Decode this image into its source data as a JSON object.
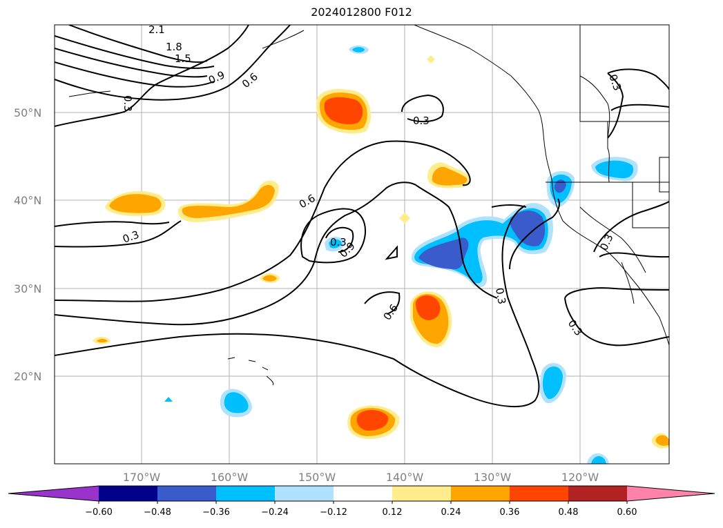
{
  "title": "2024012800 F012",
  "lat_labels": [
    "50°N",
    "40°N",
    "30°N",
    "20°N"
  ],
  "lon_labels": [
    "170°W",
    "160°W",
    "150°W",
    "140°W",
    "130°W",
    "120°W"
  ],
  "contour_labels": [
    "2.1",
    "1.8",
    "1.5",
    "0.9",
    "0.6",
    "0.3",
    "0.3",
    "0.3",
    "0.6",
    "0.3",
    "0.9",
    "0.6",
    "0.3",
    "0.3",
    "0.3"
  ],
  "colorbar": {
    "ticks": [
      "−0.60",
      "−0.48",
      "−0.36",
      "−0.24",
      "−0.12",
      "0.12",
      "0.24",
      "0.36",
      "0.48",
      "0.60"
    ],
    "colors": [
      "#9933cc",
      "#00008b",
      "#3a5bcc",
      "#00bfff",
      "#b0e2ff",
      "#ffffff",
      "#ffec8b",
      "#ffa500",
      "#ff4500",
      "#b22222",
      "#ff82ab"
    ]
  },
  "fill_colors": {
    "light_yellow": "#ffec8b",
    "orange": "#ffa500",
    "red_orange": "#ff4500",
    "light_blue": "#b0e2ff",
    "deep_sky_blue": "#00bfff",
    "royal_blue": "#3a5bcc"
  }
}
